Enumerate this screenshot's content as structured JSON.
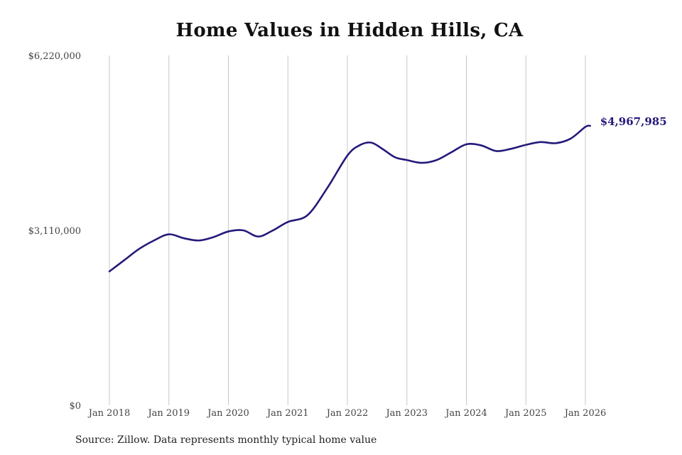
{
  "colors": {
    "line": "#241a7a",
    "grid": "#c8c8c8",
    "text": "#444444"
  },
  "chart_data": {
    "type": "line",
    "title": "Home Values in Hidden Hills, CA",
    "xlabel": "",
    "ylabel": "",
    "ylim": [
      0,
      6220000
    ],
    "y_ticks": [
      {
        "value": 0,
        "label": "$0"
      },
      {
        "value": 3110000,
        "label": "$3,110,000"
      },
      {
        "value": 6220000,
        "label": "$6,220,000"
      }
    ],
    "x_range": [
      2018.0,
      2026.0
    ],
    "x_ticks": [
      {
        "value": 2018.0,
        "label": "Jan 2018"
      },
      {
        "value": 2019.0,
        "label": "Jan 2019"
      },
      {
        "value": 2020.0,
        "label": "Jan 2020"
      },
      {
        "value": 2021.0,
        "label": "Jan 2021"
      },
      {
        "value": 2022.0,
        "label": "Jan 2022"
      },
      {
        "value": 2023.0,
        "label": "Jan 2023"
      },
      {
        "value": 2024.0,
        "label": "Jan 2024"
      },
      {
        "value": 2025.0,
        "label": "Jan 2025"
      },
      {
        "value": 2026.0,
        "label": "Jan 2026"
      }
    ],
    "grid": "vertical at x ticks",
    "legend": "none",
    "end_label": "$4,967,985",
    "series": [
      {
        "values": [
          {
            "x": 2018.0,
            "y": 2380000
          },
          {
            "x": 2018.25,
            "y": 2580000
          },
          {
            "x": 2018.5,
            "y": 2780000
          },
          {
            "x": 2018.75,
            "y": 2930000
          },
          {
            "x": 2019.0,
            "y": 3040000
          },
          {
            "x": 2019.25,
            "y": 2970000
          },
          {
            "x": 2019.5,
            "y": 2930000
          },
          {
            "x": 2019.75,
            "y": 2990000
          },
          {
            "x": 2020.0,
            "y": 3090000
          },
          {
            "x": 2020.25,
            "y": 3110000
          },
          {
            "x": 2020.5,
            "y": 3000000
          },
          {
            "x": 2020.75,
            "y": 3110000
          },
          {
            "x": 2021.0,
            "y": 3260000
          },
          {
            "x": 2021.33,
            "y": 3380000
          },
          {
            "x": 2021.66,
            "y": 3860000
          },
          {
            "x": 2022.0,
            "y": 4440000
          },
          {
            "x": 2022.2,
            "y": 4620000
          },
          {
            "x": 2022.4,
            "y": 4670000
          },
          {
            "x": 2022.6,
            "y": 4550000
          },
          {
            "x": 2022.8,
            "y": 4410000
          },
          {
            "x": 2023.0,
            "y": 4360000
          },
          {
            "x": 2023.25,
            "y": 4310000
          },
          {
            "x": 2023.5,
            "y": 4360000
          },
          {
            "x": 2023.75,
            "y": 4500000
          },
          {
            "x": 2024.0,
            "y": 4640000
          },
          {
            "x": 2024.25,
            "y": 4620000
          },
          {
            "x": 2024.5,
            "y": 4520000
          },
          {
            "x": 2024.75,
            "y": 4560000
          },
          {
            "x": 2025.0,
            "y": 4630000
          },
          {
            "x": 2025.25,
            "y": 4680000
          },
          {
            "x": 2025.5,
            "y": 4660000
          },
          {
            "x": 2025.75,
            "y": 4740000
          },
          {
            "x": 2026.0,
            "y": 4950000
          },
          {
            "x": 2026.08,
            "y": 4967985
          }
        ]
      }
    ],
    "source": "Source: Zillow. Data represents monthly typical home value"
  }
}
